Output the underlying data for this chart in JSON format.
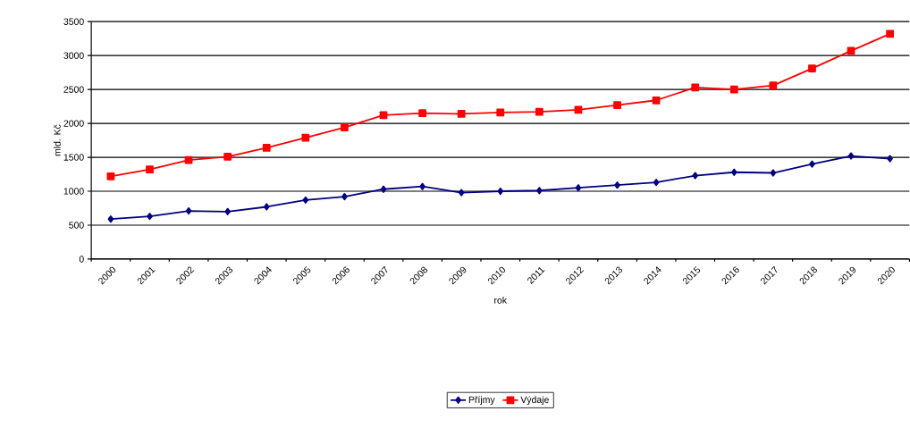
{
  "chart_data": {
    "type": "line",
    "xlabel": "rok",
    "ylabel": "mld. Kč",
    "categories": [
      "2000",
      "2001",
      "2002",
      "2003",
      "2004",
      "2005",
      "2006",
      "2007",
      "2008",
      "2009",
      "2010",
      "2011",
      "2012",
      "2013",
      "2014",
      "2015",
      "2016",
      "2017",
      "2018",
      "2019",
      "2020"
    ],
    "series": [
      {
        "name": "Příjmy",
        "color": "#000080",
        "marker": "diamond",
        "values": [
          590,
          630,
          710,
          700,
          770,
          870,
          920,
          1030,
          1070,
          980,
          1000,
          1010,
          1050,
          1090,
          1130,
          1230,
          1280,
          1270,
          1400,
          1520,
          1480
        ]
      },
      {
        "name": "Výdaje",
        "color": "#ff0000",
        "marker": "square",
        "values": [
          1220,
          1320,
          1460,
          1510,
          1640,
          1790,
          1940,
          2120,
          2150,
          2140,
          2160,
          2170,
          2200,
          2270,
          2340,
          2530,
          2500,
          2560,
          2810,
          3070,
          3320
        ]
      }
    ],
    "ylim": [
      0,
      3500
    ],
    "yticks": [
      0,
      500,
      1000,
      1500,
      2000,
      2500,
      3000,
      3500
    ],
    "grid": "y",
    "legend": "bottom",
    "line_style": "solid"
  }
}
